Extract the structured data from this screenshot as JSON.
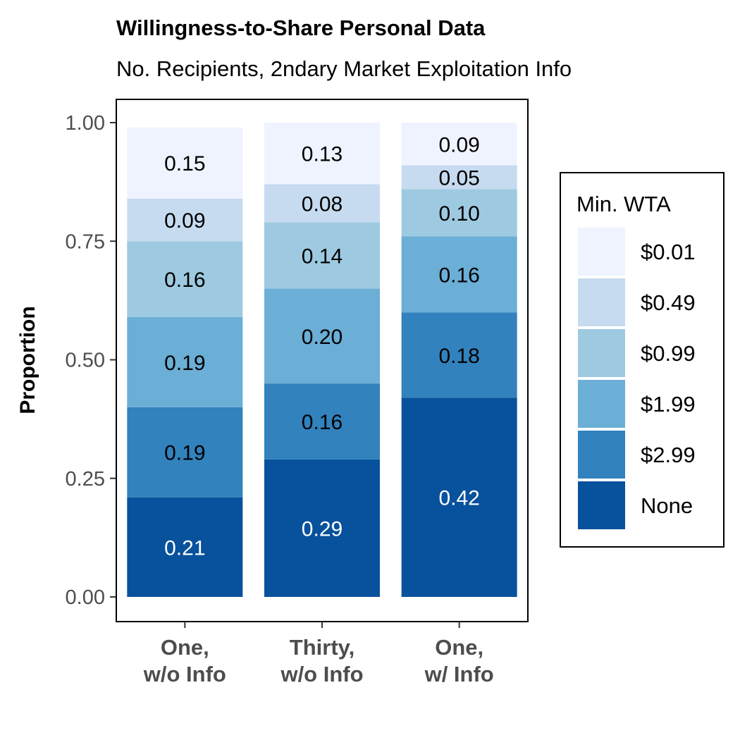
{
  "chart_data": {
    "type": "bar",
    "stacked": true,
    "title": "Willingness-to-Share Personal Data",
    "subtitle": "No. Recipients, 2ndary Market Exploitation Info",
    "xlabel": "",
    "ylabel": "Proportion",
    "ylim": [
      0,
      1
    ],
    "yticks": [
      "0.00",
      "0.25",
      "0.50",
      "0.75",
      "1.00"
    ],
    "categories": [
      [
        "One,",
        "w/o Info"
      ],
      [
        "Thirty,",
        "w/o Info"
      ],
      [
        "One,",
        "w/ Info"
      ]
    ],
    "legend_title": "Min. WTA",
    "legend_position": "right",
    "series": [
      {
        "name": "None",
        "color": "#08519c",
        "label_color": "#ffffff",
        "values": [
          0.21,
          0.29,
          0.42
        ]
      },
      {
        "name": "$2.99",
        "color": "#3182bd",
        "label_color": "#000000",
        "values": [
          0.19,
          0.16,
          0.18
        ]
      },
      {
        "name": "$1.99",
        "color": "#6baed6",
        "label_color": "#000000",
        "values": [
          0.19,
          0.2,
          0.16
        ]
      },
      {
        "name": "$0.99",
        "color": "#9ecae1",
        "label_color": "#000000",
        "values": [
          0.16,
          0.14,
          0.1
        ]
      },
      {
        "name": "$0.49",
        "color": "#c6dbef",
        "label_color": "#000000",
        "values": [
          0.09,
          0.08,
          0.05
        ]
      },
      {
        "name": "$0.01",
        "color": "#eff3ff",
        "label_color": "#000000",
        "values": [
          0.15,
          0.13,
          0.09
        ]
      }
    ],
    "legend_order": [
      "$0.01",
      "$0.49",
      "$0.99",
      "$1.99",
      "$2.99",
      "None"
    ]
  }
}
